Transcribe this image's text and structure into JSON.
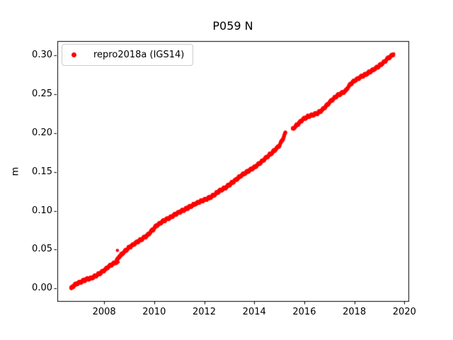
{
  "chart_data": {
    "type": "scatter",
    "title": "P059 N",
    "xlabel": "",
    "ylabel": "m",
    "grid": false,
    "legend_position": "upper left",
    "legend": [
      {
        "label": "repro2018a (IGS14)",
        "color": "#ff0000",
        "marker": "dot"
      }
    ],
    "xlim": [
      2006.13,
      2020.16
    ],
    "ylim": [
      -0.0161,
      0.3185
    ],
    "xtick_values": [
      2008,
      2010,
      2012,
      2014,
      2016,
      2018,
      2020
    ],
    "xtick_labels": [
      "2008",
      "2010",
      "2012",
      "2014",
      "2016",
      "2018",
      "2020"
    ],
    "ytick_values": [
      0.0,
      0.05,
      0.1,
      0.15,
      0.2,
      0.25,
      0.3
    ],
    "ytick_labels": [
      "0.00",
      "0.05",
      "0.10",
      "0.15",
      "0.20",
      "0.25",
      "0.30"
    ],
    "series": [
      {
        "name": "repro2018a (IGS14)",
        "color": "#ff0000",
        "marker_diameter_px": 4.5,
        "scatter_noise_m": 0.0015,
        "description": "Dense daily solutions forming a near-linear band rising about 0.0235 m/yr from 0.000 m in late 2006 to about 0.302 m in mid 2019, with a data gap between 2015.25 and 2015.53 and a small dip/outlier anomaly near 2008.5.",
        "segments": [
          {
            "trend_points": [
              [
                2006.67,
                0.0
              ],
              [
                2006.8,
                0.004
              ],
              [
                2006.95,
                0.007
              ],
              [
                2007.1,
                0.009
              ],
              [
                2007.3,
                0.012
              ],
              [
                2007.5,
                0.0135
              ],
              [
                2007.7,
                0.017
              ],
              [
                2007.9,
                0.021
              ],
              [
                2008.1,
                0.026
              ],
              [
                2008.3,
                0.031
              ],
              [
                2008.45,
                0.0335
              ],
              [
                2008.6,
                0.041
              ],
              [
                2008.8,
                0.047
              ],
              [
                2009.0,
                0.053
              ],
              [
                2009.25,
                0.0585
              ],
              [
                2009.5,
                0.0635
              ],
              [
                2009.75,
                0.069
              ],
              [
                2010.1,
                0.081
              ],
              [
                2010.4,
                0.0875
              ],
              [
                2010.65,
                0.0915
              ],
              [
                2010.9,
                0.0965
              ],
              [
                2011.2,
                0.1015
              ],
              [
                2011.5,
                0.1065
              ],
              [
                2011.76,
                0.111
              ],
              [
                2012.05,
                0.1145
              ],
              [
                2012.33,
                0.119
              ],
              [
                2012.6,
                0.1255
              ],
              [
                2012.9,
                0.131
              ],
              [
                2013.2,
                0.1385
              ],
              [
                2013.5,
                0.146
              ],
              [
                2013.75,
                0.151
              ],
              [
                2014.0,
                0.156
              ],
              [
                2014.25,
                0.162
              ],
              [
                2014.5,
                0.169
              ],
              [
                2014.75,
                0.176
              ],
              [
                2015.0,
                0.184
              ],
              [
                2015.15,
                0.193
              ],
              [
                2015.25,
                0.201
              ]
            ]
          },
          {
            "trend_points": [
              [
                2015.53,
                0.205
              ],
              [
                2015.75,
                0.212
              ],
              [
                2015.95,
                0.218
              ],
              [
                2016.15,
                0.2215
              ],
              [
                2016.35,
                0.2235
              ],
              [
                2016.55,
                0.226
              ],
              [
                2016.75,
                0.231
              ],
              [
                2016.95,
                0.2375
              ],
              [
                2017.1,
                0.2425
              ],
              [
                2017.3,
                0.248
              ],
              [
                2017.5,
                0.2515
              ],
              [
                2017.65,
                0.2545
              ],
              [
                2017.85,
                0.2635
              ],
              [
                2018.05,
                0.2685
              ],
              [
                2018.25,
                0.272
              ],
              [
                2018.45,
                0.2755
              ],
              [
                2018.65,
                0.2795
              ],
              [
                2018.85,
                0.2835
              ],
              [
                2019.05,
                0.288
              ],
              [
                2019.2,
                0.292
              ],
              [
                2019.35,
                0.2965
              ],
              [
                2019.5,
                0.3
              ],
              [
                2019.57,
                0.302
              ]
            ]
          }
        ],
        "outliers": [
          [
            2008.53,
            0.049
          ],
          [
            2008.5,
            0.0325
          ],
          [
            2008.56,
            0.034
          ]
        ]
      }
    ]
  }
}
